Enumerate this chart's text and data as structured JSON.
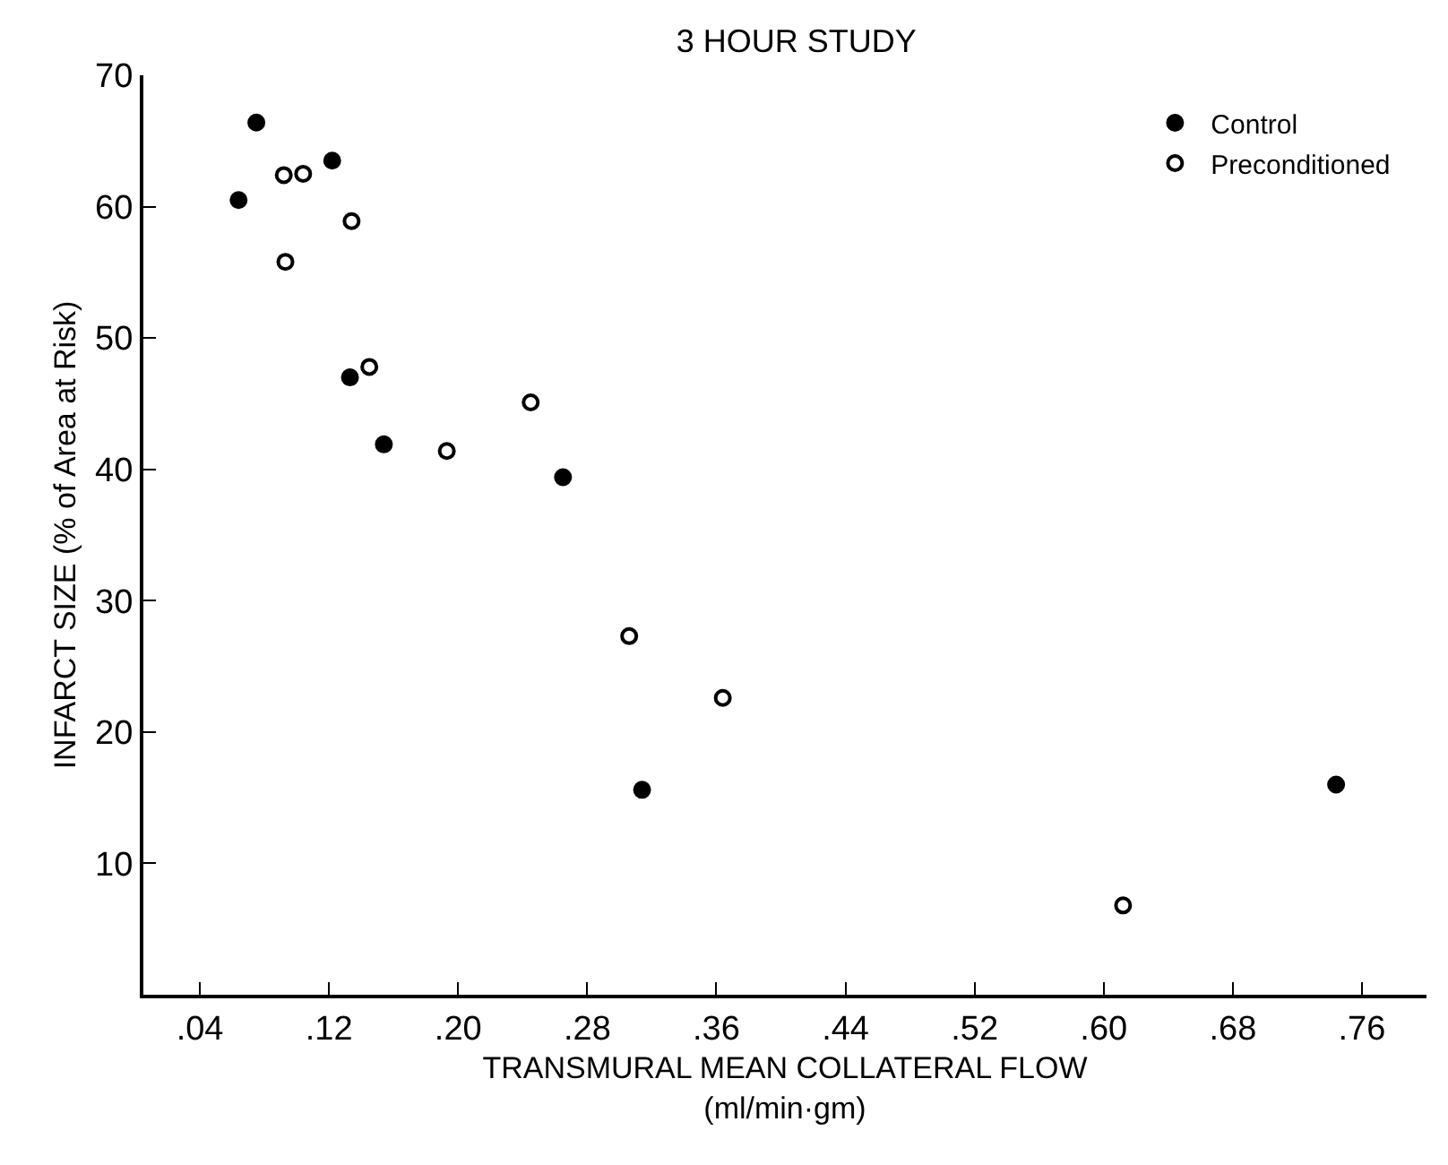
{
  "chart_data": {
    "type": "scatter",
    "title": "3 HOUR STUDY",
    "xlabel": "TRANSMURAL MEAN COLLATERAL FLOW\n(ml/min·gm)",
    "ylabel": "INFARCT SIZE (% of Area at Risk)",
    "xlim": [
      0.005,
      0.8
    ],
    "xticks": [
      {
        "value": 0.04,
        "label": ".04"
      },
      {
        "value": 0.12,
        "label": ".12"
      },
      {
        "value": 0.2,
        "label": ".20"
      },
      {
        "value": 0.28,
        "label": ".28"
      },
      {
        "value": 0.36,
        "label": ".36"
      },
      {
        "value": 0.44,
        "label": ".44"
      },
      {
        "value": 0.52,
        "label": ".52"
      },
      {
        "value": 0.6,
        "label": ".60"
      },
      {
        "value": 0.68,
        "label": ".68"
      },
      {
        "value": 0.76,
        "label": ".76"
      }
    ],
    "ylim": [
      0,
      70
    ],
    "yticks": [
      10,
      20,
      30,
      40,
      50,
      60,
      70
    ],
    "grid": false,
    "legend": "top right",
    "series": [
      {
        "name": "Control",
        "color": "#000000",
        "marker": "circle",
        "x": [
          0.064,
          0.075,
          0.122,
          0.133,
          0.154,
          0.265,
          0.314,
          0.744
        ],
        "values": [
          60.5,
          66.4,
          63.5,
          47.0,
          41.9,
          39.4,
          15.6,
          16.0
        ]
      },
      {
        "name": "Preconditioned",
        "color": "#000000",
        "marker": "circle-open",
        "x": [
          0.092,
          0.093,
          0.104,
          0.134,
          0.145,
          0.193,
          0.245,
          0.306,
          0.364,
          0.612
        ],
        "values": [
          62.4,
          55.8,
          62.5,
          58.9,
          47.8,
          41.4,
          45.1,
          27.3,
          22.6,
          6.8
        ]
      }
    ]
  }
}
